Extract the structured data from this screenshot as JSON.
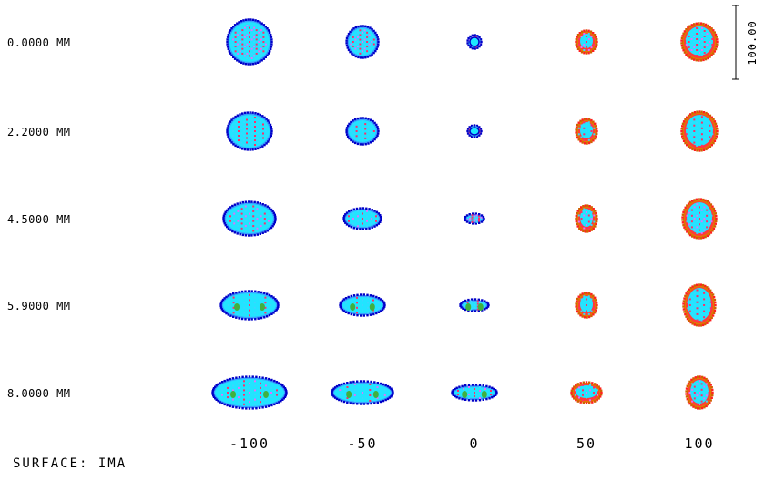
{
  "chart_data": {
    "type": "spot_diagram",
    "rows": [
      {
        "label": "0.0000 MM"
      },
      {
        "label": "2.2000 MM"
      },
      {
        "label": "4.5000 MM"
      },
      {
        "label": "5.9000 MM"
      },
      {
        "label": "8.0000 MM"
      }
    ],
    "columns": [
      {
        "label": "-100",
        "value": -100
      },
      {
        "label": "-50",
        "value": -50
      },
      {
        "label": "0",
        "value": 0
      },
      {
        "label": "50",
        "value": 50
      },
      {
        "label": "100",
        "value": 100
      }
    ],
    "scale_bar": {
      "label": "100.00"
    },
    "surface_label": "SURFACE: IMA",
    "wavelength_colors": [
      "#0000c8",
      "#00e8ff",
      "#ff2020",
      "#e070ff",
      "#e09000",
      "#30b030"
    ]
  }
}
